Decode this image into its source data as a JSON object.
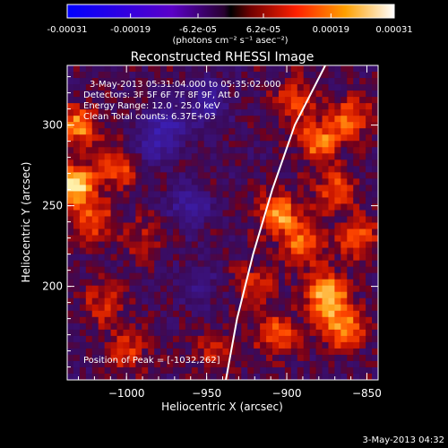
{
  "colorbar": {
    "tick_labels": [
      "-0.00031",
      "-0.00019",
      "-6.2e-05",
      "6.2e-05",
      "0.00019",
      "0.00031"
    ],
    "ticks": [
      -0.00031,
      -0.00019,
      -6.2e-05,
      6.2e-05,
      0.00019,
      0.00031
    ],
    "range": [
      -0.00031,
      0.00031
    ],
    "unit_label": "(photons cm⁻² s⁻¹ asec⁻²)"
  },
  "chart_data": {
    "type": "heatmap",
    "title": "Reconstructed RHESSI Image",
    "xlabel": "Heliocentric X (arcsec)",
    "ylabel": "Heliocentric Y (arcsec)",
    "xlim": [
      -1037,
      -843
    ],
    "ylim": [
      142,
      337
    ],
    "x_ticks": [
      -1000,
      -950,
      -900,
      -850
    ],
    "x_tick_labels": [
      "−1000",
      "−950",
      "−900",
      "−850"
    ],
    "y_ticks": [
      200,
      250,
      300
    ],
    "y_tick_labels": [
      "200",
      "250",
      "300"
    ],
    "grid": false,
    "annotations": [
      "3-May-2013 05:31:04.000 to 05:35:02.000",
      "Detectors: 3F 5F 6F 7F 8F 9F, Att 0",
      "Energy Range: 12.0 - 25.0 keV",
      "Clean     Total counts: 6.37E+03"
    ],
    "peak_label": "Position of Peak = [-1032,262]",
    "peak": [
      -1032,
      262
    ],
    "limb_line": [
      [
        -938,
        142
      ],
      [
        -931,
        180
      ],
      [
        -921,
        220
      ],
      [
        -909,
        260
      ],
      [
        -895,
        300
      ],
      [
        -876,
        337
      ]
    ],
    "hotspots": [
      {
        "x": -1032,
        "y": 262,
        "v": 1.0
      },
      {
        "x": -1030,
        "y": 300,
        "v": 0.7
      },
      {
        "x": -1020,
        "y": 240,
        "v": 0.55
      },
      {
        "x": -1005,
        "y": 275,
        "v": 0.6
      },
      {
        "x": -1000,
        "y": 160,
        "v": 0.45
      },
      {
        "x": -1015,
        "y": 190,
        "v": 0.4
      },
      {
        "x": -990,
        "y": 230,
        "v": 0.3
      },
      {
        "x": -905,
        "y": 245,
        "v": 0.8
      },
      {
        "x": -890,
        "y": 225,
        "v": 0.65
      },
      {
        "x": -875,
        "y": 195,
        "v": 0.9
      },
      {
        "x": -865,
        "y": 175,
        "v": 0.85
      },
      {
        "x": -880,
        "y": 290,
        "v": 0.7
      },
      {
        "x": -860,
        "y": 305,
        "v": 0.6
      },
      {
        "x": -870,
        "y": 260,
        "v": 0.55
      },
      {
        "x": -905,
        "y": 170,
        "v": 0.6
      },
      {
        "x": -895,
        "y": 315,
        "v": 0.5
      },
      {
        "x": -855,
        "y": 230,
        "v": 0.6
      },
      {
        "x": -920,
        "y": 200,
        "v": 0.45
      },
      {
        "x": -945,
        "y": 160,
        "v": 0.35
      },
      {
        "x": -960,
        "y": 250,
        "v": -0.5
      },
      {
        "x": -975,
        "y": 300,
        "v": -0.6
      },
      {
        "x": -950,
        "y": 315,
        "v": -0.55
      },
      {
        "x": -985,
        "y": 285,
        "v": -0.4
      },
      {
        "x": -955,
        "y": 200,
        "v": -0.3
      }
    ]
  },
  "footer": {
    "timestamp": "3-May-2013 04:32"
  }
}
